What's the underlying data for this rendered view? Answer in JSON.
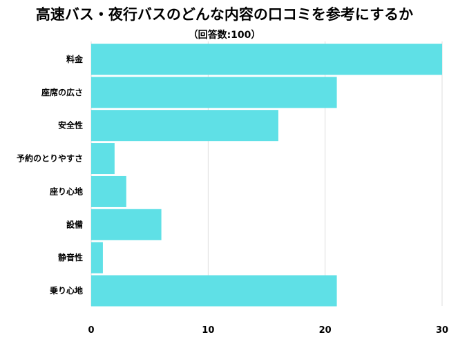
{
  "chart_data": {
    "type": "bar",
    "orientation": "horizontal",
    "title": "高速バス・夜行バスのどんな内容の口コミを参考にするか",
    "subtitle": "（回答数:100）",
    "categories": [
      "料金",
      "座席の広さ",
      "安全性",
      "予約のとりやすさ",
      "座り心地",
      "設備",
      "静音性",
      "乗り心地"
    ],
    "values": [
      30,
      21,
      16,
      2,
      3,
      6,
      1,
      21
    ],
    "xlim": [
      0,
      30
    ],
    "xticks": [
      0,
      10,
      20,
      30
    ],
    "grid": true,
    "bar_color": "#5fe0e6",
    "grid_color": "#dddddd"
  }
}
